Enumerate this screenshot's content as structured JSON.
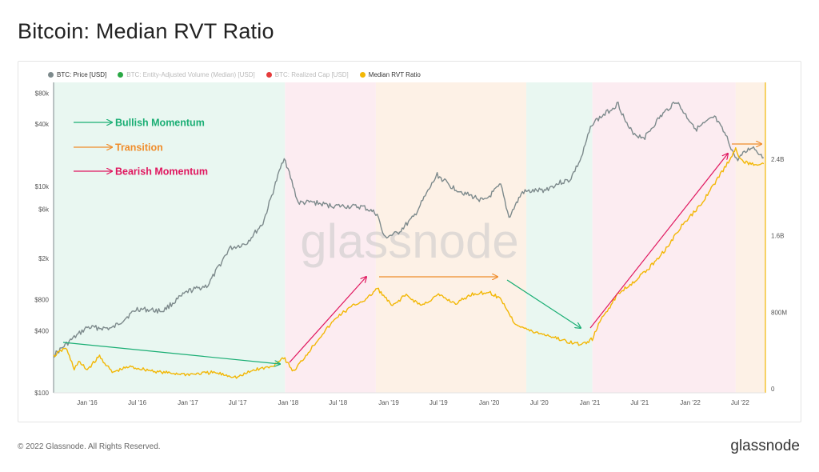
{
  "page_title": "Bitcoin: Median RVT Ratio",
  "footer": {
    "copyright": "© 2022 Glassnode. All Rights Reserved.",
    "brand": "glassnode"
  },
  "watermark": "glassnode",
  "legend": [
    {
      "label": "BTC: Price [USD]",
      "color": "#7d8a8c",
      "state": "active"
    },
    {
      "label": "BTC: Entity-Adjusted Volume (Median) [USD]",
      "color": "#2aa845",
      "state": "hidden"
    },
    {
      "label": "BTC: Realized Cap [USD]",
      "color": "#e53b3b",
      "state": "hidden"
    },
    {
      "label": "Median RVT Ratio",
      "color": "#f2b705",
      "state": "active"
    }
  ],
  "annotations": [
    {
      "label": "Bullish Momentum",
      "color": "#1aae74"
    },
    {
      "label": "Transition",
      "color": "#f08c2a"
    },
    {
      "label": "Bearish Momentum",
      "color": "#e0175f"
    }
  ],
  "chart_data": {
    "type": "line",
    "x_axis": {
      "type": "date",
      "range": [
        "2015-09-01",
        "2022-10-01"
      ],
      "ticks": [
        "Jan '16",
        "Jul '16",
        "Jan '17",
        "Jul '17",
        "Jan '18",
        "Jul '18",
        "Jan '19",
        "Jul '19",
        "Jan '20",
        "Jul '20",
        "Jan '21",
        "Jul '21",
        "Jan '22",
        "Jul '22"
      ]
    },
    "y_left": {
      "scale": "log",
      "ticks": [
        "$80k",
        "$40k",
        "$10k",
        "$6k",
        "$2k",
        "$800",
        "$400",
        "$100"
      ],
      "tick_values": [
        80000,
        40000,
        10000,
        6000,
        2000,
        800,
        400,
        100
      ]
    },
    "y_right": {
      "scale": "linear",
      "range": [
        0,
        3200000000
      ],
      "ticks": [
        "2.4B",
        "1.6B",
        "800M",
        "0"
      ],
      "tick_values": [
        2400000000,
        1600000000,
        800000000,
        0
      ]
    },
    "regions": [
      {
        "start": "2015-09-01",
        "end": "2017-12-20",
        "state": "bullish",
        "color": "#e9f7f1"
      },
      {
        "start": "2017-12-20",
        "end": "2018-11-15",
        "state": "bearish",
        "color": "#fcecf1"
      },
      {
        "start": "2018-11-15",
        "end": "2020-05-15",
        "state": "transition",
        "color": "#fdf1e6"
      },
      {
        "start": "2020-05-15",
        "end": "2021-01-10",
        "state": "bullish",
        "color": "#e9f7f1"
      },
      {
        "start": "2021-01-10",
        "end": "2022-06-15",
        "state": "bearish",
        "color": "#fcecf1"
      },
      {
        "start": "2022-06-15",
        "end": "2022-10-01",
        "state": "transition",
        "color": "#fdf1e6"
      }
    ],
    "series": [
      {
        "name": "BTC: Price [USD]",
        "axis": "left",
        "color": "#7d8a8c",
        "x": [
          "2015-09-01",
          "2015-11-01",
          "2016-01-01",
          "2016-04-01",
          "2016-07-01",
          "2016-10-01",
          "2017-01-01",
          "2017-03-15",
          "2017-06-01",
          "2017-08-01",
          "2017-10-01",
          "2017-12-17",
          "2018-02-06",
          "2018-04-01",
          "2018-06-01",
          "2018-08-01",
          "2018-10-01",
          "2018-11-20",
          "2018-12-15",
          "2019-02-01",
          "2019-04-01",
          "2019-06-26",
          "2019-08-15",
          "2019-10-15",
          "2019-12-15",
          "2020-02-12",
          "2020-03-13",
          "2020-05-01",
          "2020-07-20",
          "2020-09-15",
          "2020-10-20",
          "2020-12-01",
          "2021-01-08",
          "2021-02-15",
          "2021-04-14",
          "2021-05-20",
          "2021-06-22",
          "2021-07-20",
          "2021-09-10",
          "2021-11-10",
          "2021-12-20",
          "2022-01-24",
          "2022-03-30",
          "2022-05-10",
          "2022-06-18",
          "2022-08-14",
          "2022-09-25"
        ],
        "y": [
          230,
          320,
          430,
          420,
          650,
          620,
          960,
          1100,
          2500,
          2800,
          4400,
          19400,
          6900,
          7000,
          6500,
          6400,
          6300,
          5400,
          3200,
          3500,
          5000,
          12900,
          10000,
          8300,
          7200,
          10300,
          5000,
          8800,
          9200,
          10900,
          11500,
          18800,
          40500,
          48000,
          63500,
          37000,
          31000,
          30000,
          46000,
          67500,
          47000,
          36000,
          47000,
          31000,
          18000,
          24300,
          19000
        ]
      },
      {
        "name": "Median RVT Ratio",
        "axis": "right",
        "color": "#f2b705",
        "x": [
          "2015-09-01",
          "2015-10-15",
          "2015-11-15",
          "2015-12-01",
          "2016-01-01",
          "2016-02-15",
          "2016-04-01",
          "2016-06-01",
          "2016-08-01",
          "2016-10-01",
          "2017-01-01",
          "2017-04-01",
          "2017-07-01",
          "2017-09-01",
          "2017-11-01",
          "2017-12-15",
          "2018-01-20",
          "2018-03-01",
          "2018-05-01",
          "2018-07-01",
          "2018-09-01",
          "2018-10-15",
          "2018-11-20",
          "2019-01-15",
          "2019-03-01",
          "2019-05-01",
          "2019-07-01",
          "2019-09-01",
          "2019-11-01",
          "2020-01-01",
          "2020-02-15",
          "2020-04-01",
          "2020-06-01",
          "2020-08-01",
          "2020-10-01",
          "2020-12-01",
          "2021-01-10",
          "2021-02-15",
          "2021-03-15",
          "2021-04-15",
          "2021-06-01",
          "2021-08-01",
          "2021-10-01",
          "2021-12-01",
          "2022-02-01",
          "2022-04-01",
          "2022-05-15",
          "2022-06-15",
          "2022-07-01",
          "2022-08-01",
          "2022-09-25"
        ],
        "y": [
          340000000,
          430000000,
          210000000,
          280000000,
          200000000,
          340000000,
          170000000,
          230000000,
          200000000,
          170000000,
          150000000,
          170000000,
          120000000,
          200000000,
          230000000,
          330000000,
          180000000,
          330000000,
          560000000,
          760000000,
          880000000,
          940000000,
          1050000000,
          860000000,
          980000000,
          870000000,
          980000000,
          890000000,
          990000000,
          1010000000,
          930000000,
          690000000,
          600000000,
          560000000,
          500000000,
          460000000,
          520000000,
          750000000,
          860000000,
          1000000000,
          1100000000,
          1250000000,
          1450000000,
          1700000000,
          1900000000,
          2150000000,
          2350000000,
          2500000000,
          2400000000,
          2350000000,
          2350000000
        ]
      }
    ]
  }
}
